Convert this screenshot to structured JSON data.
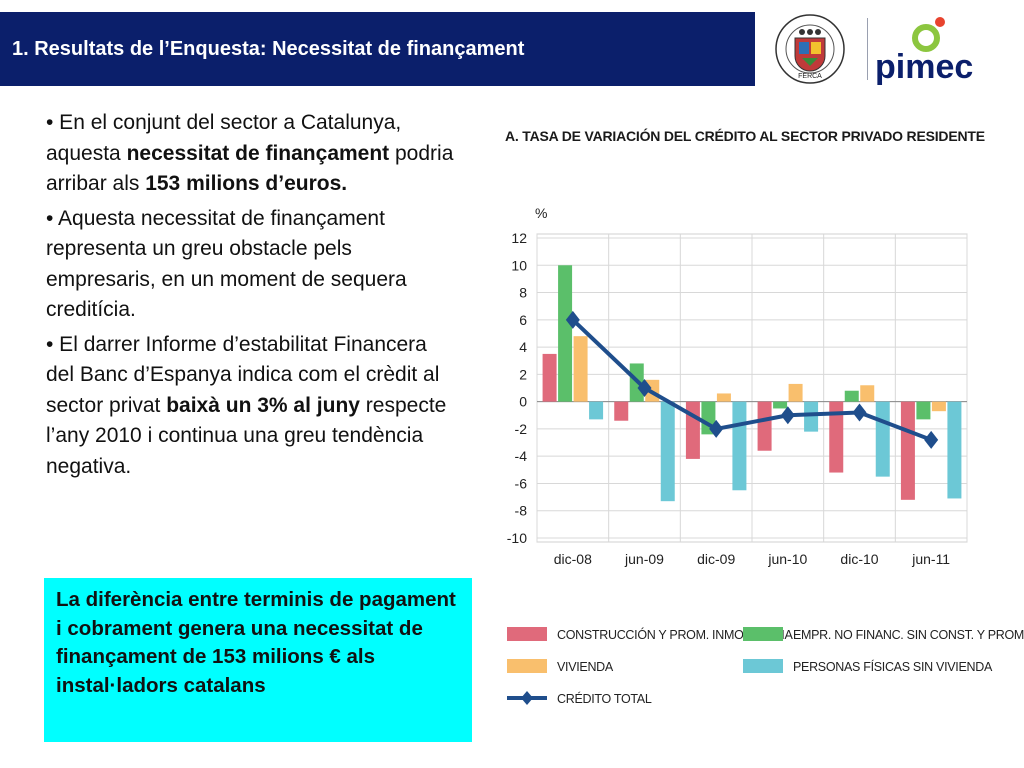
{
  "header": {
    "title": "1. Resultats de l’Enquesta: Necessitat de finançament",
    "logo_pimec": "pimec",
    "seal_text": "FERCA"
  },
  "bullets": [
    {
      "parts": [
        {
          "t": "• En el conjunt del sector a Catalunya, aquesta ",
          "b": false
        },
        {
          "t": "necessitat de finançament",
          "b": true
        },
        {
          "t": " podria arribar als ",
          "b": false
        },
        {
          "t": "153 milions d’euros.",
          "b": true
        }
      ]
    },
    {
      "parts": [
        {
          "t": "• Aquesta necessitat de finançament representa un greu obstacle pels empresaris, en un moment de sequera creditícia.",
          "b": false
        }
      ]
    },
    {
      "parts": [
        {
          "t": "• El darrer Informe d’estabilitat Financera del Banc d’Espanya indica com el crèdit al sector privat ",
          "b": false
        },
        {
          "t": "baixà un 3% al juny",
          "b": true
        },
        {
          "t": " respecte l’any 2010 i continua una greu tendència negativa.",
          "b": false
        }
      ]
    }
  ],
  "callout": {
    "text": "La diferència entre terminis de pagament i cobrament genera una necessitat de finançament de 153 milions € als instal·ladors catalans"
  },
  "chart_data": {
    "type": "bar",
    "title": "A. TASA DE VARIACIÓN DEL CRÉDITO AL SECTOR PRIVADO RESIDENTE",
    "ylabel": "%",
    "ylim": [
      -10,
      12
    ],
    "yticks": [
      12,
      10,
      8,
      6,
      4,
      2,
      0,
      -2,
      -4,
      -6,
      -8,
      -10
    ],
    "grid": true,
    "categories": [
      "dic-08",
      "jun-09",
      "dic-09",
      "jun-10",
      "dic-10",
      "jun-11"
    ],
    "series": [
      {
        "name": "CONSTRUCCIÓN Y PROM. INMOBILIARIA",
        "kind": "bar",
        "color": "#e06a7b",
        "values": [
          3.5,
          -1.4,
          -4.2,
          -3.6,
          -5.2,
          -7.2
        ]
      },
      {
        "name": "EMPR. NO FINANC. SIN CONST. Y PROM.",
        "kind": "bar",
        "color": "#5bbf6a",
        "values": [
          10.0,
          2.8,
          -2.4,
          -0.5,
          0.8,
          -1.3
        ]
      },
      {
        "name": "VIVIENDA",
        "kind": "bar",
        "color": "#f9bf6d",
        "values": [
          4.8,
          1.6,
          0.6,
          1.3,
          1.2,
          -0.7
        ]
      },
      {
        "name": "PERSONAS FÍSICAS SIN VIVIENDA",
        "kind": "bar",
        "color": "#6cc8d6",
        "values": [
          -1.3,
          -7.3,
          -6.5,
          -2.2,
          -5.5,
          -7.1
        ]
      },
      {
        "name": "CRÉDITO TOTAL",
        "kind": "line",
        "color": "#1f4e8c",
        "values": [
          6.0,
          1.0,
          -2.0,
          -1.0,
          -0.8,
          -2.8
        ]
      }
    ],
    "legend_position": "bottom"
  },
  "colors": {
    "title_bar": "#0b1f6b",
    "callout_bg": "#00ffff",
    "pimec_green": "#8cc63f",
    "pimec_red": "#e8432e",
    "pimec_navy": "#0b1f6b"
  }
}
